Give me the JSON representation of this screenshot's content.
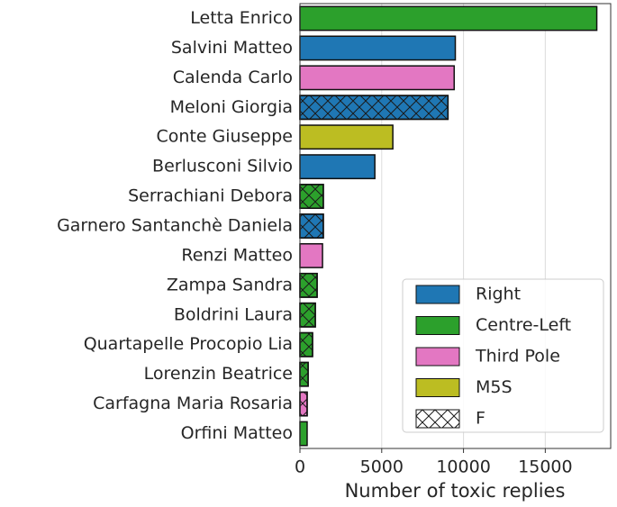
{
  "chart_data": {
    "type": "barh",
    "categories": [
      "Letta Enrico",
      "Salvini Matteo",
      "Calenda Carlo",
      "Meloni Giorgia",
      "Conte Giuseppe",
      "Berlusconi Silvio",
      "Serrachiani Debora",
      "Garnero Santanchè Daniela",
      "Renzi Matteo",
      "Zampa Sandra",
      "Boldrini Laura",
      "Quartapelle Procopio Lia",
      "Lorenzin Beatrice",
      "Carfagna Maria Rosaria",
      "Orfini Matteo"
    ],
    "values": [
      18150,
      9500,
      9430,
      9050,
      5680,
      4580,
      1430,
      1430,
      1380,
      1050,
      940,
      770,
      500,
      440,
      440
    ],
    "bar_colors": [
      "#2ca02c",
      "#1f77b4",
      "#e377c2",
      "#1f77b4",
      "#bcbd22",
      "#1f77b4",
      "#2ca02c",
      "#1f77b4",
      "#e377c2",
      "#2ca02c",
      "#2ca02c",
      "#2ca02c",
      "#2ca02c",
      "#e377c2",
      "#2ca02c"
    ],
    "bar_hatch": [
      false,
      false,
      false,
      true,
      false,
      false,
      true,
      true,
      false,
      true,
      true,
      true,
      true,
      true,
      false
    ],
    "xlabel": "Number of toxic replies",
    "xlim": [
      0,
      19000
    ],
    "xticks": [
      0,
      5000,
      10000,
      15000
    ],
    "grid": true,
    "legend_position": "lower right",
    "legend": [
      {
        "name": "Right",
        "color": "#1f77b4"
      },
      {
        "name": "Centre-Left",
        "color": "#2ca02c"
      },
      {
        "name": "Third Pole",
        "color": "#e377c2"
      },
      {
        "name": "M5S",
        "color": "#bcbd22"
      },
      {
        "name": "F",
        "color": "#ffffff",
        "hatch": true
      }
    ]
  }
}
